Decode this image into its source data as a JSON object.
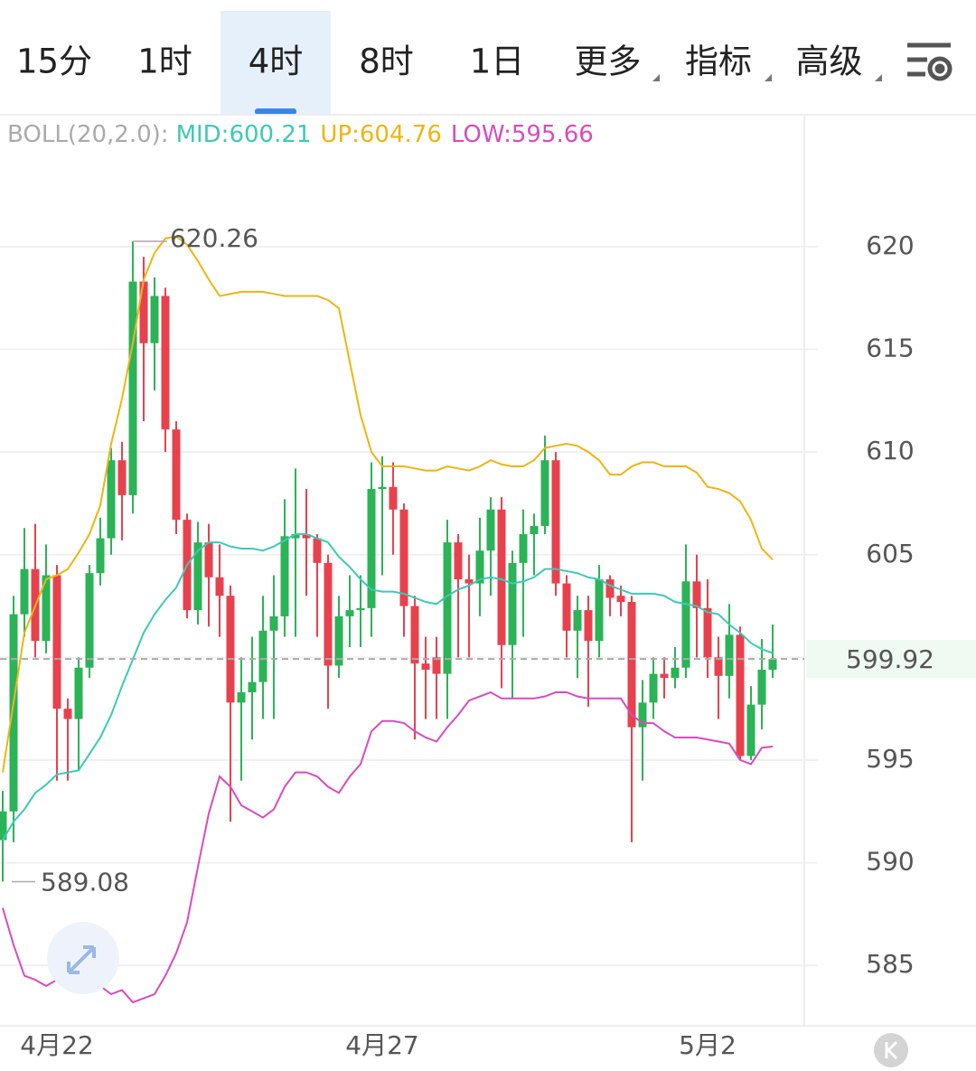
{
  "ui": {
    "tabs": [
      "15分",
      "1时",
      "4时",
      "8时",
      "1日",
      "更多",
      "指标",
      "高级"
    ],
    "active_tab": 2
  },
  "chart_data": {
    "type": "candlestick",
    "categories": [
      null,
      null,
      null,
      null,
      null,
      "4月22",
      null,
      null,
      null,
      null,
      null,
      null,
      null,
      null,
      null,
      null,
      null,
      null,
      null,
      null,
      null,
      null,
      null,
      null,
      null,
      null,
      null,
      null,
      null,
      null,
      null,
      null,
      null,
      null,
      null,
      "4月27",
      null,
      null,
      null,
      null,
      null,
      null,
      null,
      null,
      null,
      null,
      null,
      null,
      null,
      null,
      null,
      null,
      null,
      null,
      null,
      null,
      null,
      null,
      null,
      null,
      null,
      null,
      null,
      null,
      null,
      "5月2",
      null,
      null,
      null,
      null,
      null,
      null
    ],
    "open": [
      591.1,
      592.5,
      602.1,
      604.3,
      600.8,
      604.0,
      597.5,
      597.0,
      599.5,
      604.1,
      605.8,
      609.6,
      607.9,
      618.3,
      615.3,
      617.6,
      611.1,
      606.7,
      602.3,
      605.6,
      603.9,
      603.0,
      597.8,
      598.3,
      598.8,
      601.3,
      602.0,
      605.8,
      606.0,
      605.8,
      604.6,
      599.6,
      602.0,
      602.3,
      602.4,
      608.2,
      608.3,
      607.2,
      602.5,
      599.7,
      600.0,
      599.2,
      605.6,
      603.8,
      603.6,
      605.2,
      607.2,
      600.6,
      604.6,
      606.0,
      606.4,
      609.6,
      603.6,
      601.3,
      602.3,
      600.8,
      603.8,
      603.0,
      602.7,
      596.6,
      597.8,
      599.2,
      599.0,
      599.5,
      603.7,
      602.4,
      600.0,
      599.1,
      601.1,
      595.2,
      597.7,
      599.4
    ],
    "close": [
      592.5,
      602.1,
      604.3,
      600.8,
      604.0,
      597.5,
      597.0,
      599.5,
      604.1,
      605.8,
      609.6,
      607.9,
      618.3,
      615.3,
      617.6,
      611.1,
      606.7,
      602.3,
      605.6,
      603.9,
      603.0,
      597.8,
      598.3,
      598.8,
      601.3,
      602.0,
      605.9,
      606.0,
      605.8,
      604.6,
      599.6,
      602.0,
      602.3,
      602.4,
      608.2,
      608.3,
      607.2,
      602.5,
      599.7,
      599.4,
      599.2,
      605.6,
      603.8,
      603.6,
      605.2,
      607.2,
      600.6,
      604.6,
      606.0,
      606.4,
      609.6,
      603.6,
      601.3,
      602.3,
      600.8,
      603.8,
      602.9,
      602.7,
      596.6,
      597.8,
      599.2,
      599.0,
      599.5,
      603.7,
      602.4,
      600.0,
      599.1,
      601.1,
      595.2,
      597.7,
      599.4,
      599.92
    ],
    "high": [
      593.5,
      603.0,
      606.3,
      606.5,
      605.5,
      604.5,
      598.0,
      600.0,
      604.5,
      606.8,
      610.2,
      610.5,
      620.26,
      619.5,
      618.5,
      618.0,
      611.5,
      607.0,
      606.6,
      606.5,
      605.5,
      603.5,
      600.0,
      601.0,
      603.0,
      604.0,
      607.7,
      609.2,
      608.2,
      606.0,
      605.0,
      603.0,
      604.0,
      604.0,
      609.5,
      609.8,
      609.5,
      607.5,
      603.0,
      601.0,
      601.0,
      606.7,
      606.0,
      605.0,
      606.8,
      607.8,
      607.8,
      605.2,
      607.2,
      607.0,
      610.8,
      610.0,
      604.0,
      603.0,
      603.0,
      604.5,
      604.0,
      603.5,
      603.0,
      598.9,
      600.0,
      600.0,
      600.5,
      605.5,
      605.0,
      603.8,
      601.0,
      602.6,
      601.5,
      598.6,
      600.9,
      601.6
    ],
    "low": [
      589.08,
      591.0,
      601.0,
      600.0,
      600.2,
      594.0,
      594.0,
      594.5,
      599.0,
      603.5,
      605.0,
      605.7,
      607.0,
      611.5,
      613.0,
      610.0,
      606.0,
      601.9,
      601.6,
      601.5,
      601.0,
      592.0,
      594.0,
      596.0,
      597.0,
      597.0,
      601.0,
      601.0,
      603.0,
      601.0,
      597.5,
      599.0,
      600.5,
      600.5,
      601.0,
      604.0,
      605.0,
      601.0,
      596.0,
      597.0,
      597.0,
      597.0,
      600.0,
      600.0,
      602.0,
      603.0,
      598.5,
      598.0,
      601.0,
      604.0,
      606.0,
      603.0,
      600.0,
      599.0,
      597.6,
      600.0,
      602.0,
      602.0,
      591.0,
      594.0,
      597.0,
      598.0,
      598.5,
      599.0,
      600.0,
      599.0,
      597.0,
      598.0,
      595.0,
      595.0,
      596.5,
      599.0
    ],
    "up_color": "#2bb357",
    "down_color": "#e8414e",
    "ylim": [
      582.06,
      626.29
    ],
    "yticks": [
      585,
      590,
      595,
      600,
      605,
      610,
      615,
      620
    ],
    "grid": true,
    "indicator_label": "BOLL(20,2.0):",
    "series": [
      {
        "name": "MID",
        "legend_label": "MID:600.21",
        "color": "#3ccab6",
        "values": [
          591.1,
          592.0,
          592.6,
          593.4,
          593.8,
          594.3,
          594.4,
          594.5,
          595.3,
          596.1,
          597.2,
          598.6,
          599.9,
          601.2,
          602.1,
          602.8,
          603.4,
          604.5,
          605.2,
          605.6,
          605.6,
          605.4,
          605.3,
          605.3,
          605.2,
          605.4,
          605.7,
          606.0,
          606.0,
          605.8,
          605.6,
          604.9,
          604.4,
          603.8,
          603.3,
          603.2,
          603.2,
          603.1,
          602.9,
          602.7,
          602.6,
          603.0,
          603.3,
          603.5,
          603.8,
          603.9,
          603.8,
          603.6,
          603.7,
          603.9,
          604.3,
          604.3,
          604.2,
          604.1,
          603.9,
          603.8,
          603.5,
          603.3,
          603.1,
          603.1,
          603.1,
          603.0,
          602.7,
          602.6,
          602.5,
          602.2,
          602.1,
          601.6,
          601.2,
          600.7,
          600.4,
          600.21
        ]
      },
      {
        "name": "UP",
        "legend_label": "UP:604.76",
        "color": "#eeb511",
        "values": [
          594.4,
          597.8,
          601.2,
          602.5,
          603.8,
          604.0,
          604.3,
          605.1,
          606.0,
          607.4,
          610.4,
          612.6,
          615.3,
          618.4,
          619.7,
          620.4,
          620.5,
          620.1,
          619.3,
          618.4,
          617.6,
          617.7,
          617.8,
          617.8,
          617.8,
          617.7,
          617.6,
          617.6,
          617.6,
          617.6,
          617.4,
          617.0,
          614.4,
          611.8,
          610.0,
          609.3,
          609.3,
          609.3,
          609.2,
          609.1,
          609.1,
          609.3,
          609.2,
          609.1,
          609.3,
          609.6,
          609.4,
          609.3,
          609.3,
          609.6,
          610.2,
          610.3,
          610.4,
          610.3,
          610.0,
          609.6,
          608.9,
          608.9,
          609.3,
          609.5,
          609.5,
          609.3,
          609.3,
          609.3,
          609.0,
          608.3,
          608.2,
          608.0,
          607.6,
          606.7,
          605.3,
          604.76
        ]
      },
      {
        "name": "LOW",
        "legend_label": "LOW:595.66",
        "color": "#d84bbf",
        "values": [
          587.8,
          586.0,
          584.5,
          584.3,
          584.0,
          584.3,
          584.5,
          584.4,
          584.3,
          584.0,
          583.6,
          583.8,
          583.2,
          583.4,
          583.6,
          584.5,
          585.6,
          587.1,
          589.8,
          592.4,
          594.2,
          593.7,
          592.8,
          592.5,
          592.2,
          592.6,
          593.7,
          594.4,
          594.4,
          594.2,
          593.7,
          593.4,
          594.2,
          594.8,
          596.4,
          596.9,
          596.9,
          596.8,
          596.4,
          596.1,
          595.9,
          596.6,
          597.2,
          597.9,
          598.1,
          598.3,
          598.0,
          598.0,
          598.0,
          598.0,
          598.1,
          598.3,
          598.3,
          598.1,
          598.0,
          598.0,
          598.0,
          598.0,
          597.2,
          596.8,
          596.8,
          596.4,
          596.1,
          596.1,
          596.1,
          596.0,
          595.9,
          595.8,
          595.0,
          594.8,
          595.6,
          595.66
        ]
      }
    ],
    "max_label": "620.26",
    "min_label": "589.08",
    "last_price": 599.92
  }
}
